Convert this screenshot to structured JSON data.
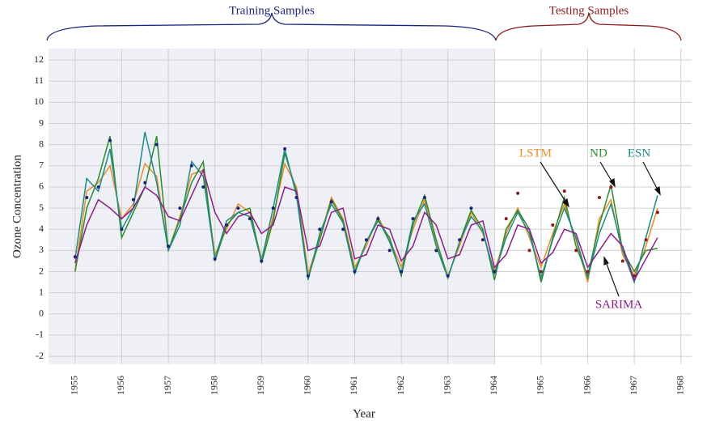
{
  "chart_data": {
    "type": "line",
    "x_label": "Year",
    "y_label": "Ozone Concentration",
    "annotations": [
      "Training Samples",
      "Testing Samples"
    ],
    "xlim": [
      1954.43,
      1968.23
    ],
    "ylim": [
      -2.38,
      12.54
    ],
    "xticks": [
      1955,
      1956,
      1957,
      1958,
      1959,
      1960,
      1961,
      1962,
      1963,
      1964,
      1965,
      1966,
      1967,
      1968
    ],
    "yticks": [
      -2,
      -1,
      0,
      1,
      2,
      3,
      4,
      5,
      6,
      7,
      8,
      9,
      10,
      11,
      12
    ],
    "shade_until": 1964,
    "grid": true,
    "x": [
      1955,
      1955.25,
      1955.5,
      1955.75,
      1956,
      1956.25,
      1956.5,
      1956.75,
      1957,
      1957.25,
      1957.5,
      1957.75,
      1958,
      1958.25,
      1958.5,
      1958.75,
      1959,
      1959.25,
      1959.5,
      1959.75,
      1960,
      1960.25,
      1960.5,
      1960.75,
      1961,
      1961.25,
      1961.5,
      1961.75,
      1962,
      1962.25,
      1962.5,
      1962.75,
      1963,
      1963.25,
      1963.5,
      1963.75,
      1964,
      1964.25,
      1964.5,
      1964.75,
      1965,
      1965.25,
      1965.5,
      1965.75,
      1966,
      1966.25,
      1966.5,
      1966.75,
      1967,
      1967.25,
      1967.5
    ],
    "series": [
      {
        "name": "LSTM",
        "color": "#f08c1e",
        "values": [
          2.0,
          5.8,
          6.2,
          7.0,
          4.5,
          5.2,
          7.1,
          6.5,
          3.0,
          4.6,
          6.6,
          6.8,
          2.8,
          4.0,
          5.2,
          4.8,
          2.6,
          4.6,
          7.1,
          6.0,
          1.9,
          3.6,
          5.5,
          4.5,
          2.2,
          3.2,
          4.6,
          3.5,
          2.2,
          4.0,
          5.4,
          3.4,
          1.8,
          3.2,
          4.8,
          3.8,
          2.0,
          3.8,
          5.0,
          3.6,
          2.2,
          3.8,
          5.2,
          3.5,
          1.5,
          4.5,
          5.4,
          2.8,
          1.8,
          3.2,
          5.0
        ]
      },
      {
        "name": "ND",
        "color": "#2a8c2a",
        "values": [
          2.0,
          5.0,
          6.4,
          8.4,
          3.6,
          4.8,
          6.0,
          8.4,
          3.0,
          4.5,
          6.2,
          7.2,
          2.5,
          4.2,
          4.8,
          5.0,
          2.4,
          4.4,
          7.6,
          5.8,
          1.7,
          3.5,
          5.4,
          4.4,
          2.0,
          3.4,
          4.4,
          3.6,
          1.8,
          4.2,
          5.6,
          3.5,
          1.7,
          3.4,
          4.9,
          4.0,
          1.6,
          4.0,
          4.9,
          4.0,
          1.5,
          3.6,
          5.5,
          3.2,
          1.8,
          4.2,
          6.1,
          3.0,
          2.0,
          3.0,
          3.1
        ]
      },
      {
        "name": "ESN",
        "color": "#1a8c8c",
        "values": [
          2.6,
          6.4,
          5.8,
          7.8,
          4.0,
          5.0,
          8.6,
          6.2,
          3.0,
          4.2,
          7.2,
          6.5,
          2.6,
          4.4,
          4.8,
          4.6,
          2.5,
          5.0,
          7.8,
          5.6,
          1.6,
          3.8,
          5.2,
          4.3,
          1.9,
          3.4,
          4.5,
          3.4,
          1.9,
          4.4,
          5.2,
          3.2,
          1.7,
          3.4,
          4.6,
          3.9,
          1.9,
          3.6,
          4.8,
          3.8,
          1.7,
          3.5,
          5.0,
          3.6,
          1.7,
          3.8,
          5.2,
          3.0,
          1.5,
          3.6,
          5.6
        ]
      },
      {
        "name": "SARIMA",
        "color": "#8b1e8b",
        "values": [
          2.4,
          4.2,
          5.4,
          5.0,
          4.5,
          5.0,
          6.0,
          5.6,
          4.6,
          4.4,
          5.6,
          6.8,
          4.8,
          3.8,
          4.6,
          4.8,
          3.8,
          4.2,
          6.0,
          5.8,
          3.0,
          3.2,
          4.8,
          5.0,
          2.6,
          2.8,
          4.2,
          4.0,
          2.5,
          3.2,
          4.8,
          4.2,
          2.6,
          2.8,
          4.2,
          4.4,
          2.2,
          2.8,
          4.2,
          4.0,
          2.4,
          2.9,
          4.0,
          3.8,
          2.2,
          3.0,
          3.8,
          3.2,
          1.6,
          2.6,
          3.6
        ]
      },
      {
        "color": "#1a237e",
        "values": [
          2.7,
          5.5,
          6.0,
          8.2,
          4.0,
          5.4,
          6.2,
          8.0,
          3.2,
          5.0,
          7.0,
          6.0,
          2.6,
          4.2,
          5.0,
          4.5,
          2.5,
          5.0,
          7.8,
          5.5,
          1.8,
          4.0,
          5.3,
          4.0,
          2.0,
          3.5,
          4.5,
          3.0,
          2.0,
          4.5,
          5.5,
          3.0,
          1.8,
          3.5,
          5.0,
          3.5,
          2.0,
          null,
          null,
          null,
          null,
          null,
          null,
          null,
          null,
          null,
          null,
          null,
          null,
          null,
          null
        ]
      },
      {
        "color": "#8b1a1a",
        "values": [
          null,
          null,
          null,
          null,
          null,
          null,
          null,
          null,
          null,
          null,
          null,
          null,
          null,
          null,
          null,
          null,
          null,
          null,
          null,
          null,
          null,
          null,
          null,
          null,
          null,
          null,
          null,
          null,
          null,
          null,
          null,
          null,
          null,
          null,
          null,
          null,
          null,
          4.5,
          5.7,
          3.0,
          2.0,
          4.2,
          5.8,
          3.0,
          2.0,
          5.5,
          6.0,
          2.5,
          1.8,
          3.5,
          4.8
        ]
      }
    ]
  }
}
